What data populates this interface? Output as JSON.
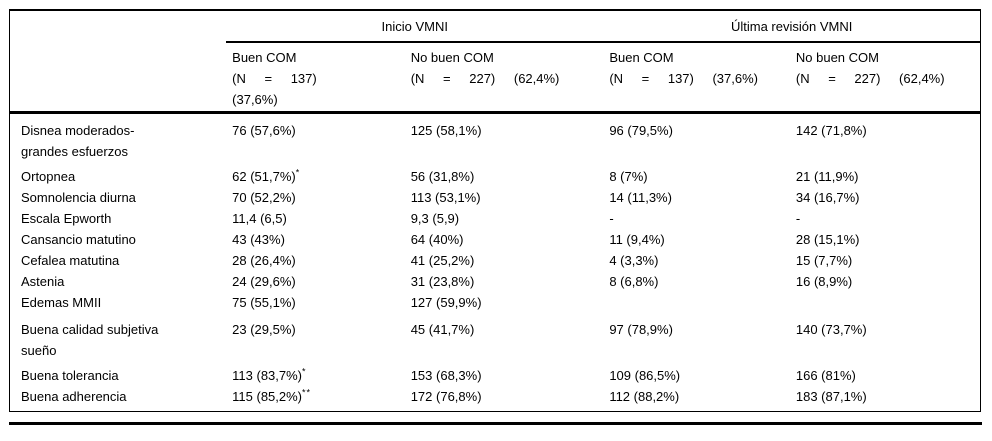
{
  "table": {
    "column_groups": [
      {
        "label": "Inicio VMNI"
      },
      {
        "label": "Última revisión VMNI"
      }
    ],
    "sub_headers": [
      {
        "lines": [
          "Buen COM",
          "(N = 137)",
          "(37,6%)"
        ]
      },
      {
        "lines": [
          "No buen COM",
          "(N = 227) (62,4%)"
        ]
      },
      {
        "lines": [
          "Buen COM",
          "(N = 137) (37,6%)"
        ]
      },
      {
        "lines": [
          "No buen COM",
          "(N = 227) (62,4%)"
        ]
      }
    ],
    "rows": [
      {
        "label": "Disnea moderados-\ngrandes esfuerzos",
        "values": [
          "76 (57,6%)",
          "125 (58,1%)",
          "96 (79,5%)",
          "142 (71,8%)"
        ],
        "sups": [
          "",
          "",
          "",
          ""
        ]
      },
      {
        "label": "Ortopnea",
        "values": [
          "62 (51,7%)",
          "56 (31,8%)",
          "8 (7%)",
          "21 (11,9%)"
        ],
        "sups": [
          "*",
          "",
          "",
          ""
        ]
      },
      {
        "label": "Somnolencia diurna",
        "values": [
          "70 (52,2%)",
          "113 (53,1%)",
          "14 (11,3%)",
          "34 (16,7%)"
        ],
        "sups": [
          "",
          "",
          "",
          ""
        ]
      },
      {
        "label": "Escala Epworth",
        "values": [
          "11,4 (6,5)",
          "9,3 (5,9)",
          "-",
          "-"
        ],
        "sups": [
          "",
          "",
          "",
          ""
        ]
      },
      {
        "label": "Cansancio matutino",
        "values": [
          "43 (43%)",
          "64 (40%)",
          "11 (9,4%)",
          "28 (15,1%)"
        ],
        "sups": [
          "",
          "",
          "",
          ""
        ]
      },
      {
        "label": "Cefalea matutina",
        "values": [
          "28 (26,4%)",
          "41 (25,2%)",
          "4 (3,3%)",
          "15 (7,7%)"
        ],
        "sups": [
          "",
          "",
          "",
          ""
        ]
      },
      {
        "label": "Astenia",
        "values": [
          "24 (29,6%)",
          "31 (23,8%)",
          "8 (6,8%)",
          "16 (8,9%)"
        ],
        "sups": [
          "",
          "",
          "",
          ""
        ]
      },
      {
        "label": "Edemas MMII",
        "values": [
          "75 (55,1%)",
          "127 (59,9%)",
          "",
          ""
        ],
        "sups": [
          "",
          "",
          "",
          ""
        ]
      },
      {
        "label": "Buena calidad subjetiva\nsueño",
        "values": [
          "23 (29,5%)",
          "45 (41,7%)",
          "97 (78,9%)",
          "140 (73,7%)"
        ],
        "sups": [
          "",
          "",
          "",
          ""
        ]
      },
      {
        "label": "Buena tolerancia",
        "values": [
          "113 (83,7%)",
          "153 (68,3%)",
          "109 (86,5%)",
          "166 (81%)"
        ],
        "sups": [
          "*",
          "",
          "",
          ""
        ]
      },
      {
        "label": "Buena adherencia",
        "values": [
          "115 (85,2%)",
          "172 (76,8%)",
          "112 (88,2%)",
          "183 (87,1%)"
        ],
        "sups": [
          "**",
          "",
          "",
          ""
        ]
      }
    ]
  }
}
